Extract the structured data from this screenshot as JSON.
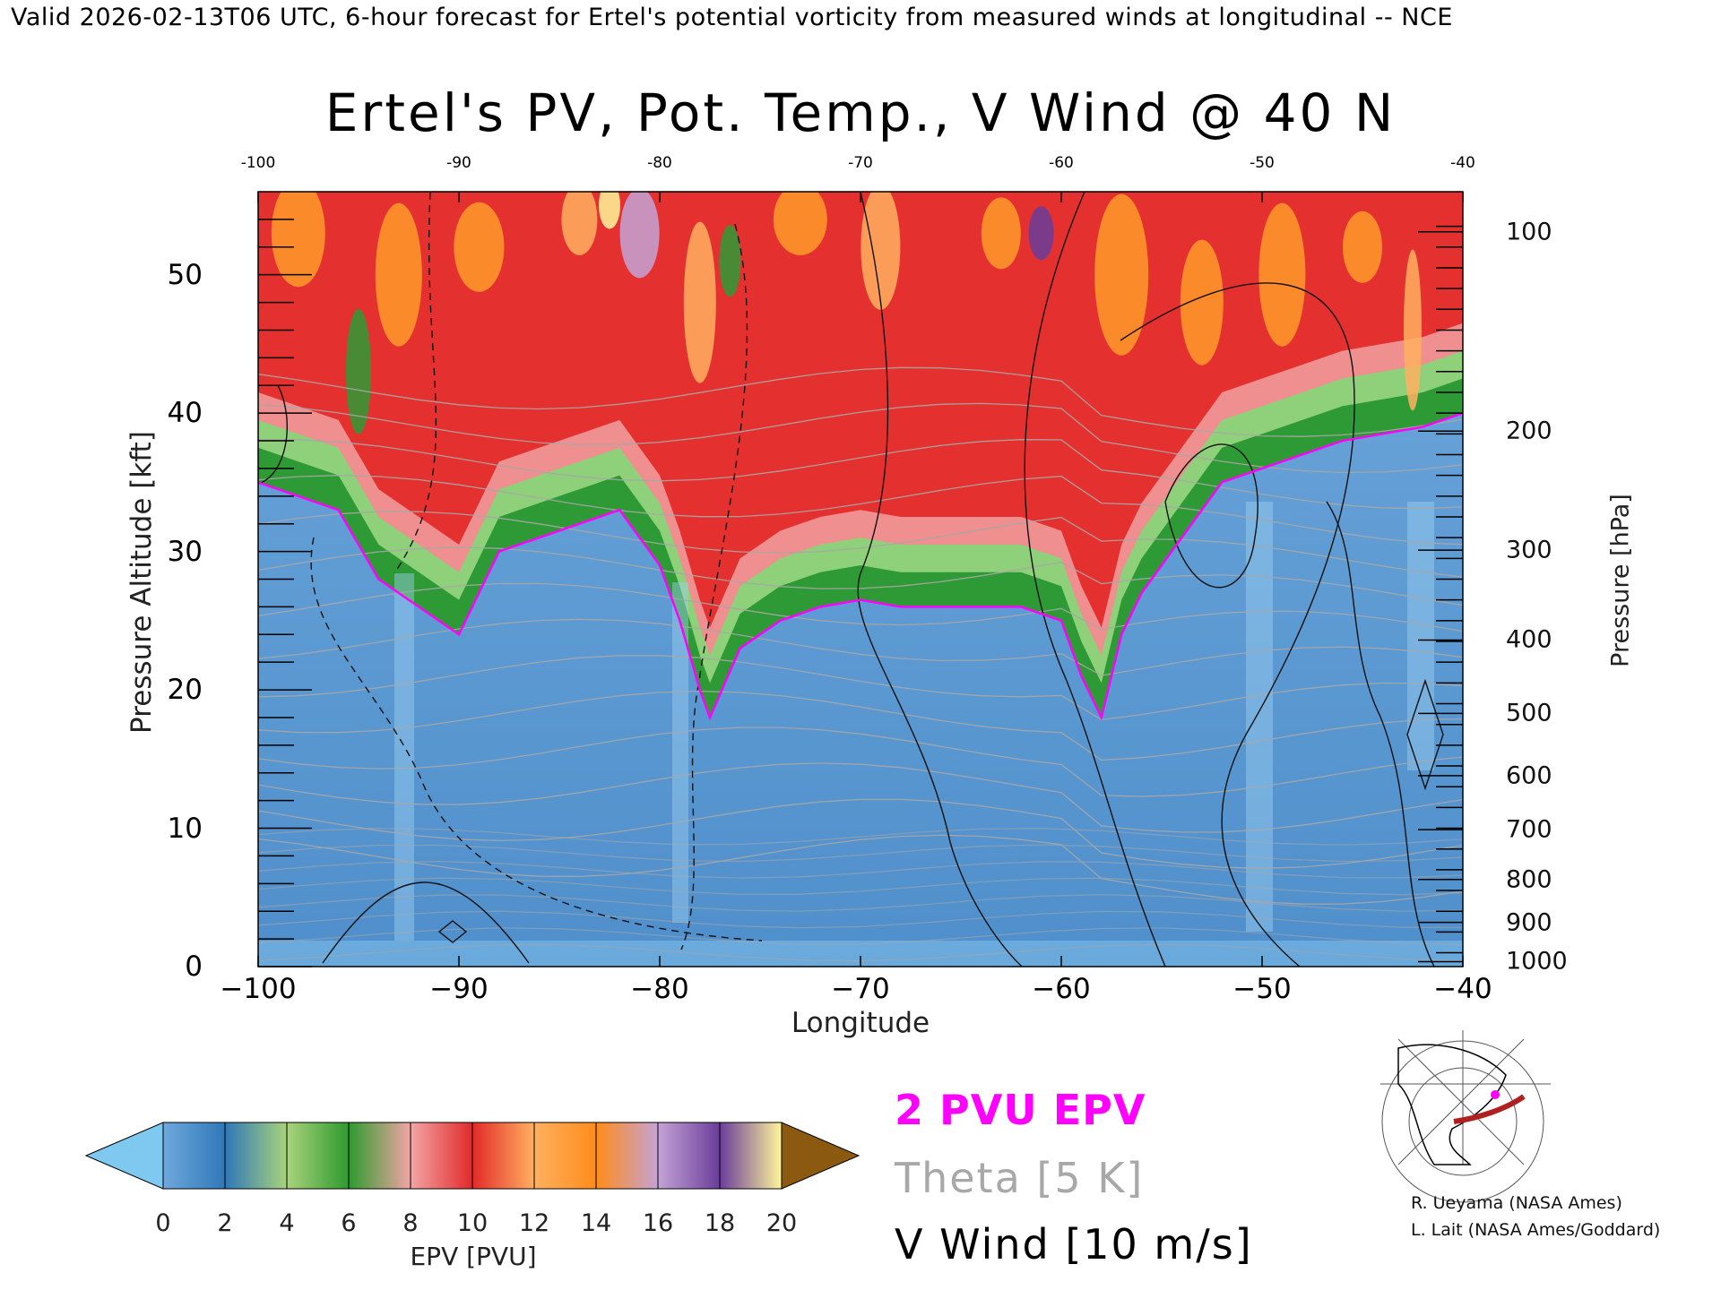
{
  "header": {
    "valid_line": "Valid 2026-02-13T06 UTC, 6-hour forecast for Ertel's potential vorticity from measured winds at longitudinal -- NCE"
  },
  "chart_data": {
    "type": "heatmap",
    "title": "Ertel's PV, Pot. Temp., V Wind @ 40 N",
    "xlabel": "Longitude",
    "ylabel": "Pressure Altitude [kft]",
    "ylabel_right": "Pressure [hPa]",
    "xlim": [
      -100,
      -40
    ],
    "ylim": [
      0,
      56
    ],
    "x_ticks": [
      "-100",
      "-90",
      "-80",
      "-70",
      "-60",
      "-50",
      "-40"
    ],
    "x_ticks_bottom": [
      "−100",
      "−90",
      "−80",
      "−70",
      "−60",
      "−50",
      "−40"
    ],
    "x_tick_values": [
      -100,
      -90,
      -80,
      -70,
      -60,
      -50,
      -40
    ],
    "y_ticks": [
      "0",
      "10",
      "20",
      "30",
      "40",
      "50"
    ],
    "y_tick_values": [
      0,
      10,
      20,
      30,
      40,
      50
    ],
    "pressure_ticks": [
      "100",
      "200",
      "300",
      "400",
      "500",
      "600",
      "700",
      "800",
      "900",
      "1000"
    ],
    "pressure_tick_kft": [
      53.1,
      38.7,
      30.1,
      23.6,
      18.3,
      13.8,
      9.9,
      6.3,
      3.2,
      0.36
    ],
    "tropopause_2pvu": {
      "lon": [
        -100,
        -98,
        -96,
        -94,
        -92,
        -90,
        -88,
        -86,
        -84,
        -82,
        -80,
        -79,
        -78,
        -77.5,
        -76,
        -74,
        -72,
        -70,
        -68,
        -66,
        -64,
        -62,
        -60,
        -59,
        -58,
        -57,
        -56,
        -54,
        -52,
        -50,
        -48,
        -46,
        -44,
        -42,
        -40
      ],
      "kft": [
        35,
        34,
        33,
        28,
        26,
        24,
        30,
        31,
        32,
        33,
        29,
        25,
        20,
        18,
        23,
        25,
        26,
        26.5,
        26,
        26,
        26,
        26,
        25,
        21,
        18,
        24,
        27,
        31,
        35,
        36,
        37,
        38,
        38.5,
        39,
        40
      ]
    },
    "colorbar": {
      "label": "EPV [PVU]",
      "ticks": [
        "0",
        "2",
        "4",
        "6",
        "8",
        "10",
        "12",
        "14",
        "16",
        "18",
        "20"
      ],
      "colors": [
        "#6fa8dc",
        "#2f78b8",
        "#a9d37b",
        "#2f9a2f",
        "#f2a5a5",
        "#e22a2a",
        "#ffb060",
        "#ff8c1a",
        "#c4a3d6",
        "#6a3d9a",
        "#fff59a"
      ],
      "under_color": "#7fc8f0",
      "over_color": "#8b5a10"
    }
  },
  "legend": {
    "epv": "2 PVU EPV",
    "theta": "Theta [5 K]",
    "vwind": "V Wind [10 m/s]",
    "epv_color": "#ff00ff",
    "theta_color": "#a8a8a8"
  },
  "credits": {
    "line1": "R. Ueyama (NASA Ames)",
    "line2": "L. Lait (NASA Ames/Goddard)"
  },
  "inset_map": {
    "track_color": "#b02020",
    "marker_color": "#ff00ff"
  }
}
